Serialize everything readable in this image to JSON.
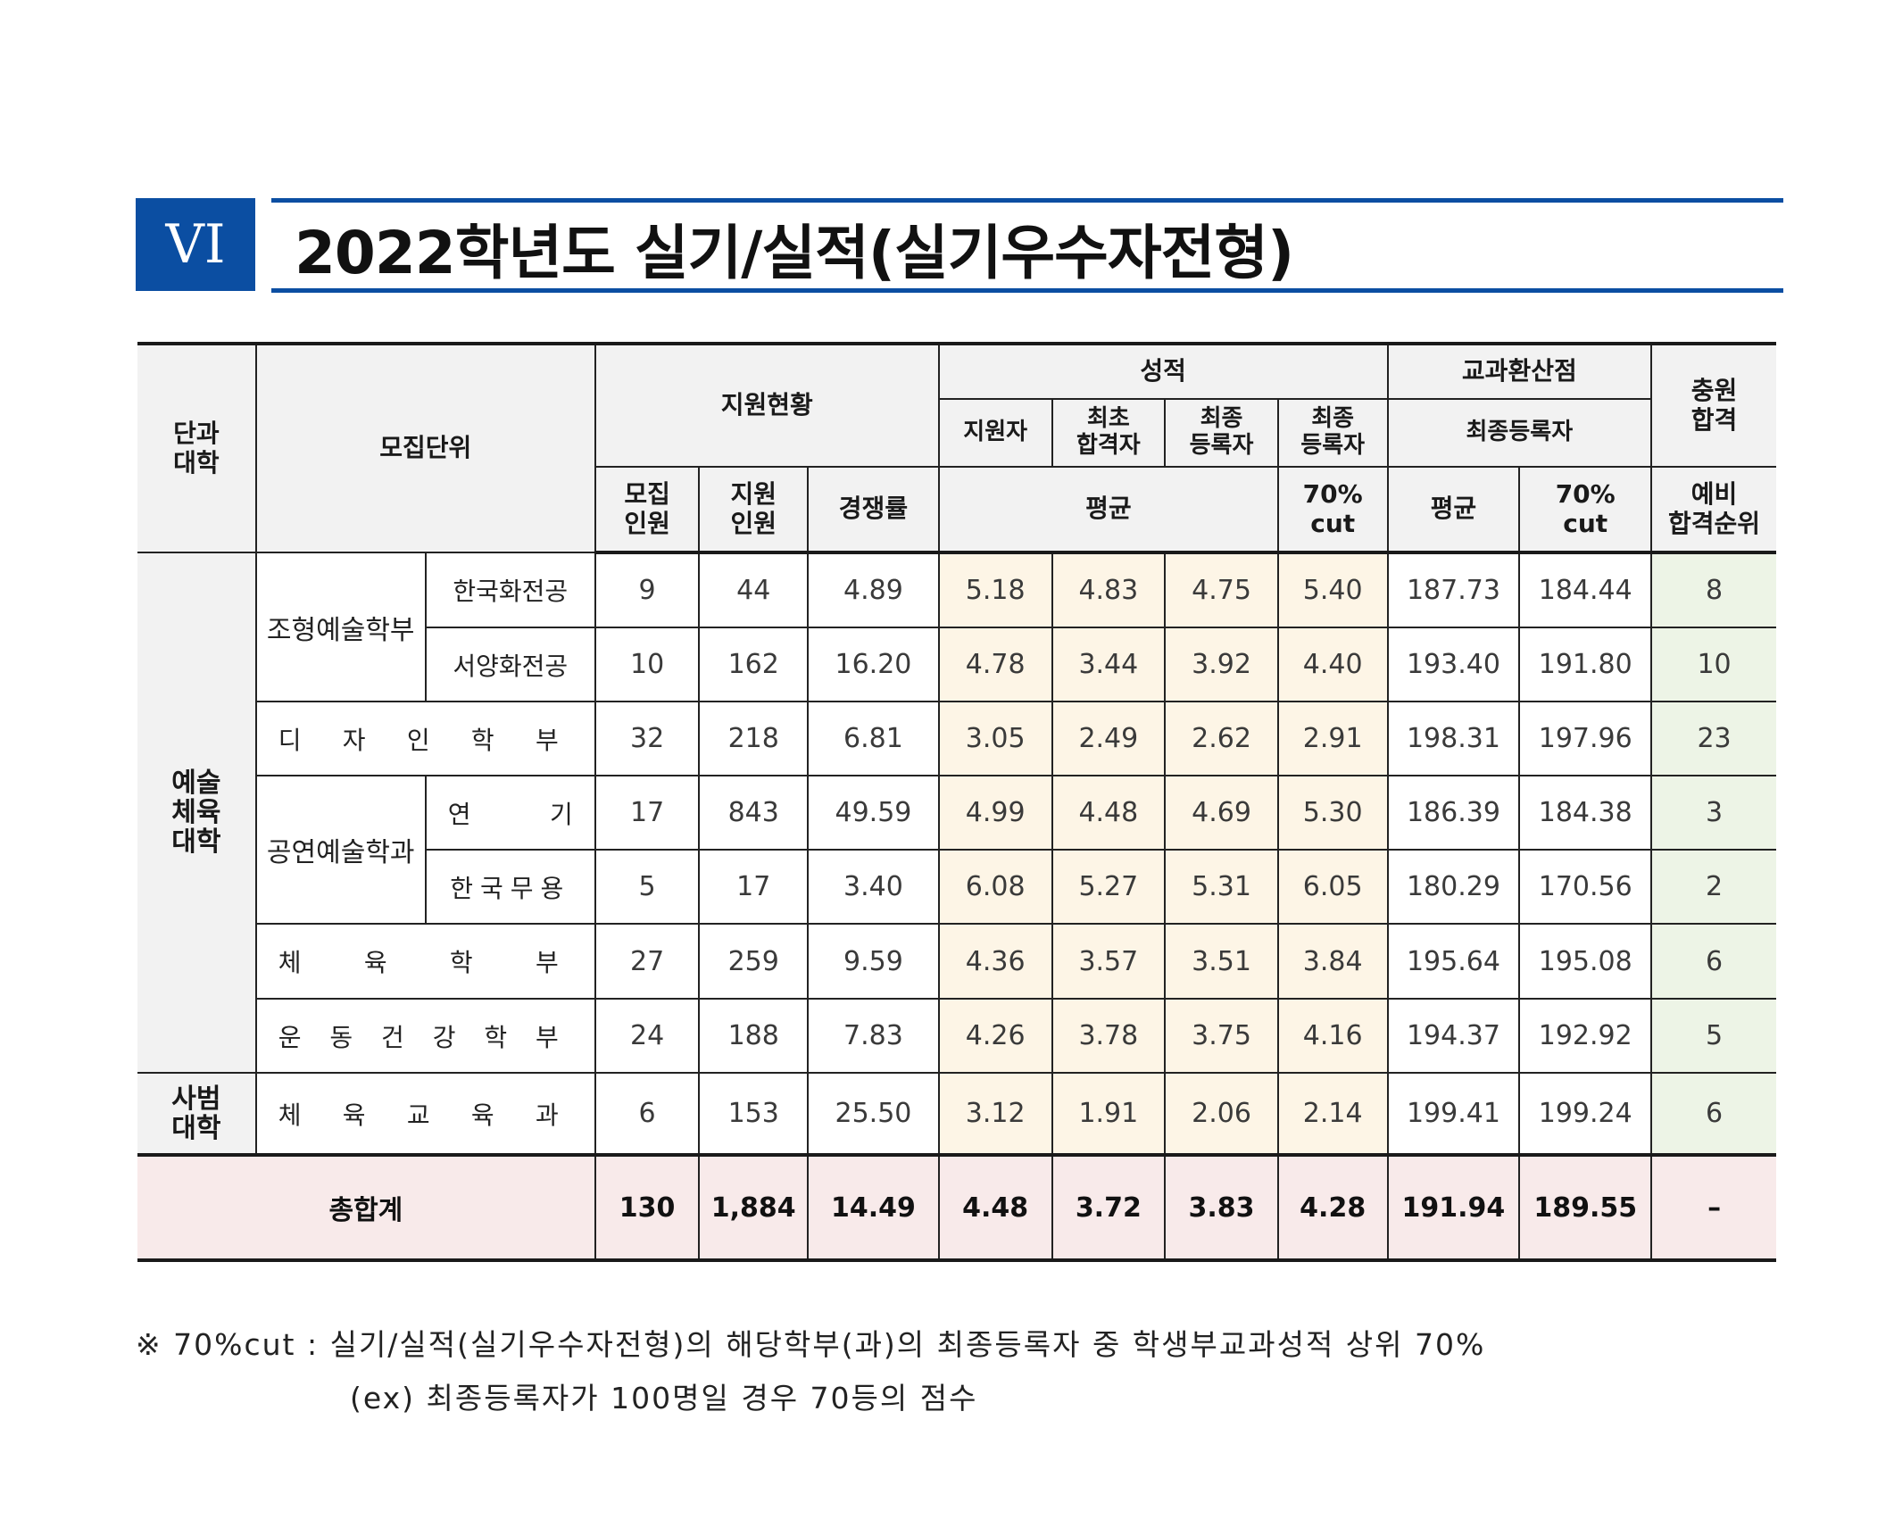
{
  "title": {
    "roman": "VI",
    "text": "2022학년도 실기/실적(실기우수자전형)"
  },
  "headers": {
    "college": "단과\n대학",
    "unit": "모집단위",
    "applications": "지원현황",
    "grades": "성적",
    "converted": "교과환산점",
    "extra": "충원\n합격",
    "applicants": "지원자",
    "first_pass": "최초\n합격자",
    "final_reg_1": "최종\n등록자",
    "final_reg_2": "최종\n등록자",
    "final_reg_converted": "최종등록자",
    "quota": "모집\n인원",
    "applied": "지원\n인원",
    "ratio": "경쟁률",
    "avg": "평균",
    "cut70": "70%\ncut",
    "avg2": "평균",
    "cut70_2": "70%\ncut",
    "waitlist": "예비\n합격순위"
  },
  "colleges": {
    "arts": "예술\n체육\n대학",
    "edu": "사범\n대학"
  },
  "groups": {
    "formative": "조형예술학부",
    "performing": "공연예술학과"
  },
  "rows": [
    {
      "dept": "한국화전공",
      "quota": "9",
      "applied": "44",
      "ratio": "4.89",
      "s1": "5.18",
      "s2": "4.83",
      "s3": "4.75",
      "s4": "5.40",
      "c1": "187.73",
      "c2": "184.44",
      "rank": "8"
    },
    {
      "dept": "서양화전공",
      "quota": "10",
      "applied": "162",
      "ratio": "16.20",
      "s1": "4.78",
      "s2": "3.44",
      "s3": "3.92",
      "s4": "4.40",
      "c1": "193.40",
      "c2": "191.80",
      "rank": "10"
    },
    {
      "dept": [
        "디",
        "자",
        "인",
        "학",
        "부"
      ],
      "quota": "32",
      "applied": "218",
      "ratio": "6.81",
      "s1": "3.05",
      "s2": "2.49",
      "s3": "2.62",
      "s4": "2.91",
      "c1": "198.31",
      "c2": "197.96",
      "rank": "23"
    },
    {
      "dept": [
        "연",
        "기"
      ],
      "quota": "17",
      "applied": "843",
      "ratio": "49.59",
      "s1": "4.99",
      "s2": "4.48",
      "s3": "4.69",
      "s4": "5.30",
      "c1": "186.39",
      "c2": "184.38",
      "rank": "3"
    },
    {
      "dept": "한국무용",
      "quota": "5",
      "applied": "17",
      "ratio": "3.40",
      "s1": "6.08",
      "s2": "5.27",
      "s3": "5.31",
      "s4": "6.05",
      "c1": "180.29",
      "c2": "170.56",
      "rank": "2"
    },
    {
      "dept": [
        "체",
        "육",
        "학",
        "부"
      ],
      "quota": "27",
      "applied": "259",
      "ratio": "9.59",
      "s1": "4.36",
      "s2": "3.57",
      "s3": "3.51",
      "s4": "3.84",
      "c1": "195.64",
      "c2": "195.08",
      "rank": "6"
    },
    {
      "dept": [
        "운",
        "동",
        "건",
        "강",
        "학",
        "부"
      ],
      "quota": "24",
      "applied": "188",
      "ratio": "7.83",
      "s1": "4.26",
      "s2": "3.78",
      "s3": "3.75",
      "s4": "4.16",
      "c1": "194.37",
      "c2": "192.92",
      "rank": "5"
    },
    {
      "dept": [
        "체",
        "육",
        "교",
        "육",
        "과"
      ],
      "quota": "6",
      "applied": "153",
      "ratio": "25.50",
      "s1": "3.12",
      "s2": "1.91",
      "s3": "2.06",
      "s4": "2.14",
      "c1": "199.41",
      "c2": "199.24",
      "rank": "6"
    }
  ],
  "total": {
    "label": "총합계",
    "quota": "130",
    "applied": "1,884",
    "ratio": "14.49",
    "s1": "4.48",
    "s2": "3.72",
    "s3": "3.83",
    "s4": "4.28",
    "c1": "191.94",
    "c2": "189.55",
    "rank": "–"
  },
  "notes": {
    "line1": "※ 70%cut : 실기/실적(실기우수자전형)의 해당학부(과)의 최종등록자 중 학생부교과성적 상위 70%",
    "line2": "(ex) 최종등록자가 100명일 경우 70등의 점수"
  },
  "colors": {
    "accent": "#0b4ea2",
    "header_bg": "#f2f2f2",
    "score_bg": "#fdf5e6",
    "rank_bg": "#edf4e6",
    "total_bg": "#f8eaea"
  }
}
